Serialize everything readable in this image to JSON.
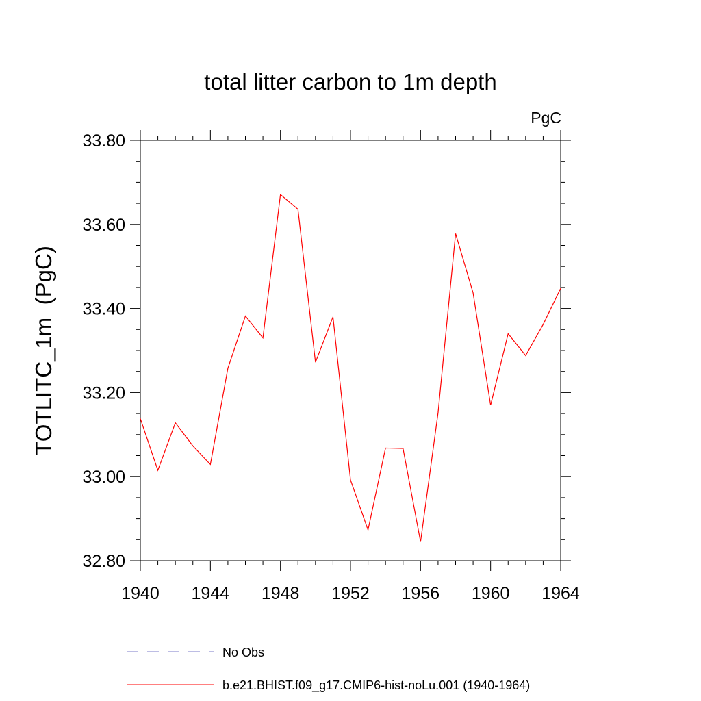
{
  "chart_data": {
    "type": "line",
    "title": "total litter carbon to 1m depth",
    "units": "PgC",
    "ylabel": "TOTLITC_1m  (PgC)",
    "xlabel": "",
    "xlim": [
      1940,
      1964
    ],
    "ylim": [
      32.8,
      33.8
    ],
    "x_ticks": [
      "1940",
      "1944",
      "1948",
      "1952",
      "1956",
      "1960",
      "1964"
    ],
    "y_ticks": [
      "32.80",
      "33.00",
      "33.20",
      "33.40",
      "33.60",
      "33.80"
    ],
    "grid": false,
    "legend_position": "bottom",
    "series": [
      {
        "name": "b.e21.BHIST.f09_g17.CMIP6-hist-noLu.001 (1940-1964)",
        "color": "#ff0000",
        "style": "solid",
        "x": [
          1940,
          1941,
          1942,
          1943,
          1944,
          1945,
          1946,
          1947,
          1948,
          1949,
          1950,
          1951,
          1952,
          1953,
          1954,
          1955,
          1956,
          1957,
          1958,
          1959,
          1960,
          1961,
          1962,
          1963,
          1964
        ],
        "y": [
          33.138,
          33.015,
          33.128,
          33.073,
          33.029,
          33.258,
          33.382,
          33.33,
          33.671,
          33.636,
          33.272,
          33.38,
          32.992,
          32.873,
          33.068,
          33.067,
          32.845,
          33.152,
          33.578,
          33.437,
          33.17,
          33.34,
          33.288,
          33.362,
          33.448
        ]
      }
    ],
    "legend": [
      {
        "label": "No Obs",
        "color": "#7b7bc8",
        "style": "dashed"
      },
      {
        "label": "b.e21.BHIST.f09_g17.CMIP6-hist-noLu.001 (1940-1964)",
        "color": "#ff0000",
        "style": "solid"
      }
    ]
  }
}
